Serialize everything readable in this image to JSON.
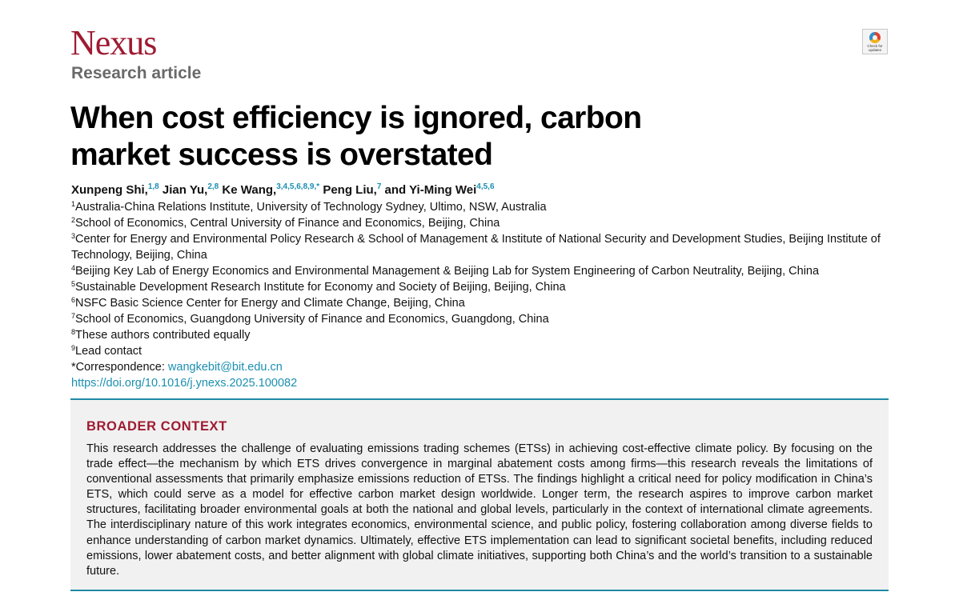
{
  "journal": "Nexus",
  "badge_text": "Check for updates",
  "article_type": "Research article",
  "title": "When cost efficiency is ignored, carbon market success is overstated",
  "authors": [
    {
      "name": "Xunpeng Shi,",
      "sup": "1,8"
    },
    {
      "name": "Jian Yu,",
      "sup": "2,8"
    },
    {
      "name": "Ke Wang,",
      "sup": "3,4,5,6,8,9,*"
    },
    {
      "name": "Peng Liu,",
      "sup": "7"
    },
    {
      "name": "and Yi-Ming Wei",
      "sup": "4,5,6"
    }
  ],
  "affiliations": [
    {
      "num": "1",
      "text": "Australia-China Relations Institute, University of Technology Sydney, Ultimo, NSW, Australia"
    },
    {
      "num": "2",
      "text": "School of Economics, Central University of Finance and Economics, Beijing, China"
    },
    {
      "num": "3",
      "text": "Center for Energy and Environmental Policy Research & School of Management & Institute of National Security and Development Studies, Beijing Institute of Technology, Beijing, China"
    },
    {
      "num": "4",
      "text": "Beijing Key Lab of Energy Economics and Environmental Management & Beijing Lab for System Engineering of Carbon Neutrality, Beijing, China"
    },
    {
      "num": "5",
      "text": "Sustainable Development Research Institute for Economy and Society of Beijing, Beijing, China"
    },
    {
      "num": "6",
      "text": "NSFC Basic Science Center for Energy and Climate Change, Beijing, China"
    },
    {
      "num": "7",
      "text": "School of Economics, Guangdong University of Finance and Economics, Guangdong, China"
    },
    {
      "num": "8",
      "text": "These authors contributed equally"
    },
    {
      "num": "9",
      "text": "Lead contact"
    }
  ],
  "correspondence": {
    "label": "*Correspondence: ",
    "email": "wangkebit@bit.edu.cn"
  },
  "doi": "https://doi.org/10.1016/j.ynexs.2025.100082",
  "broader_context": {
    "heading": "BROADER CONTEXT",
    "text": "This research addresses the challenge of evaluating emissions trading schemes (ETSs) in achieving cost-effective climate policy. By focusing on the trade effect—the mechanism by which ETS drives convergence in marginal abatement costs among firms—this research reveals the limitations of conventional assessments that primarily emphasize emissions reduction of ETSs. The findings highlight a critical need for policy modification in China’s ETS, which could serve as a model for effective carbon market design worldwide. Longer term, the research aspires to improve carbon market structures, facilitating broader environmental goals at both the national and global levels, particularly in the context of international climate agreements. The interdisciplinary nature of this work integrates economics, environmental science, and public policy, fostering collaboration among diverse fields to enhance understanding of carbon market dynamics. Ultimately, effective ETS implementation can lead to significant societal benefits, including reduced emissions, lower abatement costs, and better alignment with global climate initiatives, supporting both China’s and the world’s transition to a sustainable future."
  },
  "colors": {
    "brand": "#9e1b32",
    "link": "#1b8fb0",
    "rule": "#1f8aa6"
  }
}
